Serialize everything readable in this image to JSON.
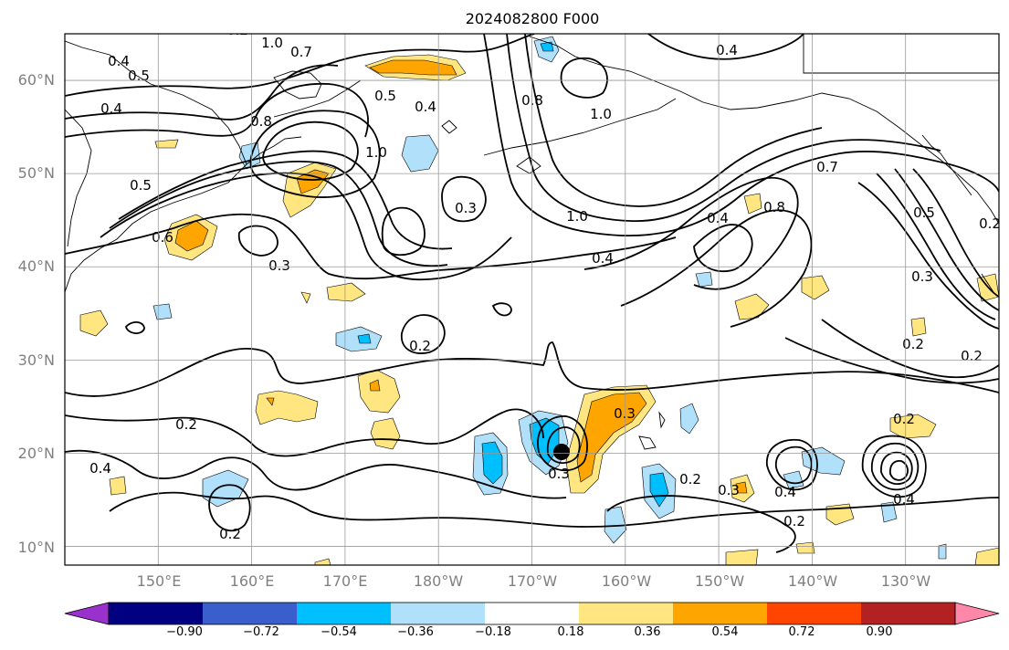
{
  "map": {
    "title": "2024082800 F000",
    "lat_labels": [
      "10°N",
      "20°N",
      "30°N",
      "40°N",
      "50°N",
      "60°N"
    ],
    "lon_labels": [
      "150°E",
      "160°E",
      "170°E",
      "180°W",
      "170°W",
      "160°W",
      "150°W",
      "140°W",
      "130°W"
    ],
    "extent": {
      "lon_min": 140,
      "lon_max": 240,
      "lat_min": 8,
      "lat_max": 65
    },
    "colorbar": {
      "tick_labels": [
        "−0.90",
        "−0.72",
        "−0.54",
        "−0.36",
        "−0.18",
        "0.18",
        "0.36",
        "0.54",
        "0.72",
        "0.90"
      ],
      "colors": [
        "#9932cc",
        "#000080",
        "#3a5fcd",
        "#00bfff",
        "#b0e0fa",
        "#ffffff",
        "#ffe680",
        "#ffa500",
        "#ff4500",
        "#b22222",
        "#ff88aa"
      ]
    },
    "contour_labels": [
      "1.0",
      "0.4",
      "0.5",
      "0.4",
      "0.2",
      "0.5",
      "0.8",
      "0.4",
      "0.7",
      "1.0",
      "0.3",
      "0.4",
      "0.8",
      "1.0",
      "0.5",
      "0.6",
      "0.4",
      "0.7",
      "1.0",
      "0.3",
      "0.4",
      "0.8",
      "0.5",
      "0.2",
      "0.3",
      "0.2",
      "0.2",
      "0.2",
      "0.2",
      "0.3",
      "0.2",
      "0.4",
      "0.3",
      "0.2"
    ]
  }
}
